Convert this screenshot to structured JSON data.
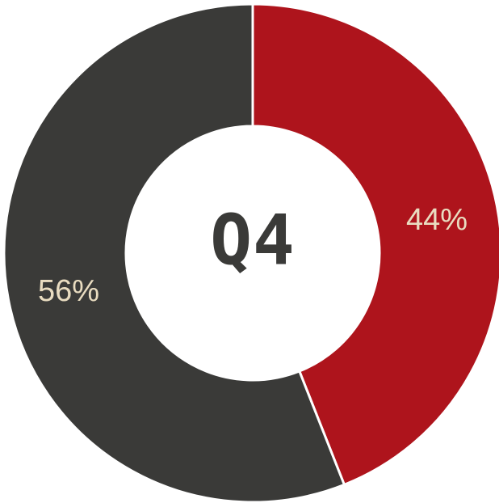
{
  "chart_data": {
    "type": "pie",
    "donut": true,
    "center_label": "Q4",
    "slices": [
      {
        "label": "44%",
        "value": 44,
        "color": "#ae141c"
      },
      {
        "label": "56%",
        "value": 56,
        "color": "#3a3a38"
      }
    ],
    "label_color": "#e9dcc0",
    "center_label_color": "#3a3a38"
  }
}
